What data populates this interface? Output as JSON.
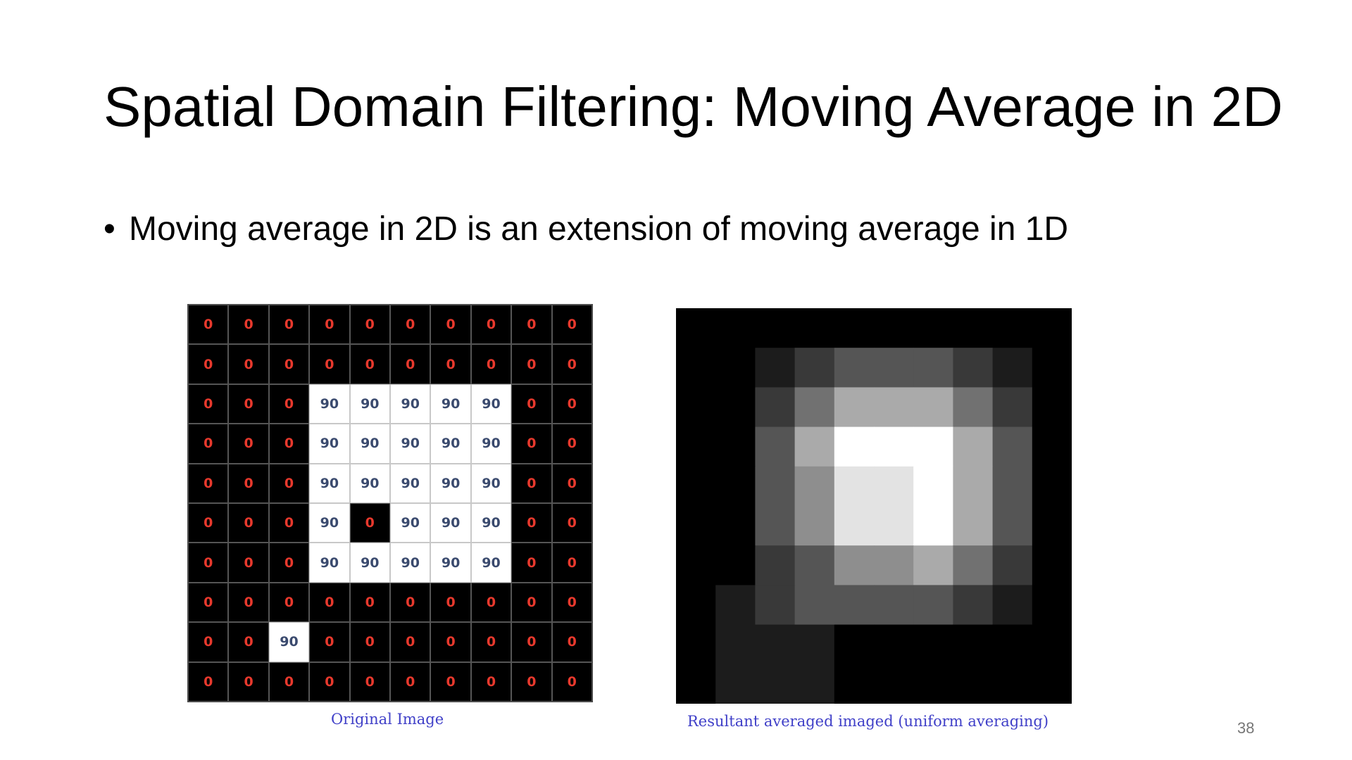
{
  "slide": {
    "title": "Spatial Domain Filtering: Moving Average in 2D",
    "bullet": "Moving average in 2D is an extension of moving average in 1D",
    "bullet_symbol": "•",
    "page_number": "38"
  },
  "original_image": {
    "caption": "Original Image",
    "grid": [
      [
        0,
        0,
        0,
        0,
        0,
        0,
        0,
        0,
        0,
        0
      ],
      [
        0,
        0,
        0,
        0,
        0,
        0,
        0,
        0,
        0,
        0
      ],
      [
        0,
        0,
        0,
        90,
        90,
        90,
        90,
        90,
        0,
        0
      ],
      [
        0,
        0,
        0,
        90,
        90,
        90,
        90,
        90,
        0,
        0
      ],
      [
        0,
        0,
        0,
        90,
        90,
        90,
        90,
        90,
        0,
        0
      ],
      [
        0,
        0,
        0,
        90,
        0,
        90,
        90,
        90,
        0,
        0
      ],
      [
        0,
        0,
        0,
        90,
        90,
        90,
        90,
        90,
        0,
        0
      ],
      [
        0,
        0,
        0,
        0,
        0,
        0,
        0,
        0,
        0,
        0
      ],
      [
        0,
        0,
        90,
        0,
        0,
        0,
        0,
        0,
        0,
        0
      ],
      [
        0,
        0,
        0,
        0,
        0,
        0,
        0,
        0,
        0,
        0
      ]
    ],
    "colors": {
      "zero_bg": "#000000",
      "zero_text": "#e8392d",
      "ninety_bg": "#ffffff",
      "ninety_text": "#3a4a6e"
    }
  },
  "result_image": {
    "caption": "Resultant averaged imaged (uniform averaging)",
    "grid": [
      [
        0,
        0,
        0,
        0,
        0,
        0,
        0,
        0,
        0,
        0
      ],
      [
        0,
        0,
        10,
        20,
        30,
        30,
        30,
        20,
        10,
        0
      ],
      [
        0,
        0,
        20,
        40,
        60,
        60,
        60,
        40,
        20,
        0
      ],
      [
        0,
        0,
        30,
        60,
        90,
        90,
        90,
        60,
        30,
        0
      ],
      [
        0,
        0,
        30,
        50,
        80,
        80,
        90,
        60,
        30,
        0
      ],
      [
        0,
        0,
        30,
        50,
        80,
        80,
        90,
        60,
        30,
        0
      ],
      [
        0,
        0,
        20,
        30,
        50,
        50,
        60,
        40,
        20,
        0
      ],
      [
        0,
        10,
        20,
        30,
        30,
        30,
        30,
        20,
        10,
        0
      ],
      [
        0,
        10,
        10,
        10,
        0,
        0,
        0,
        0,
        0,
        0
      ],
      [
        0,
        10,
        10,
        10,
        0,
        0,
        0,
        0,
        0,
        0
      ]
    ],
    "max_value": 90
  }
}
